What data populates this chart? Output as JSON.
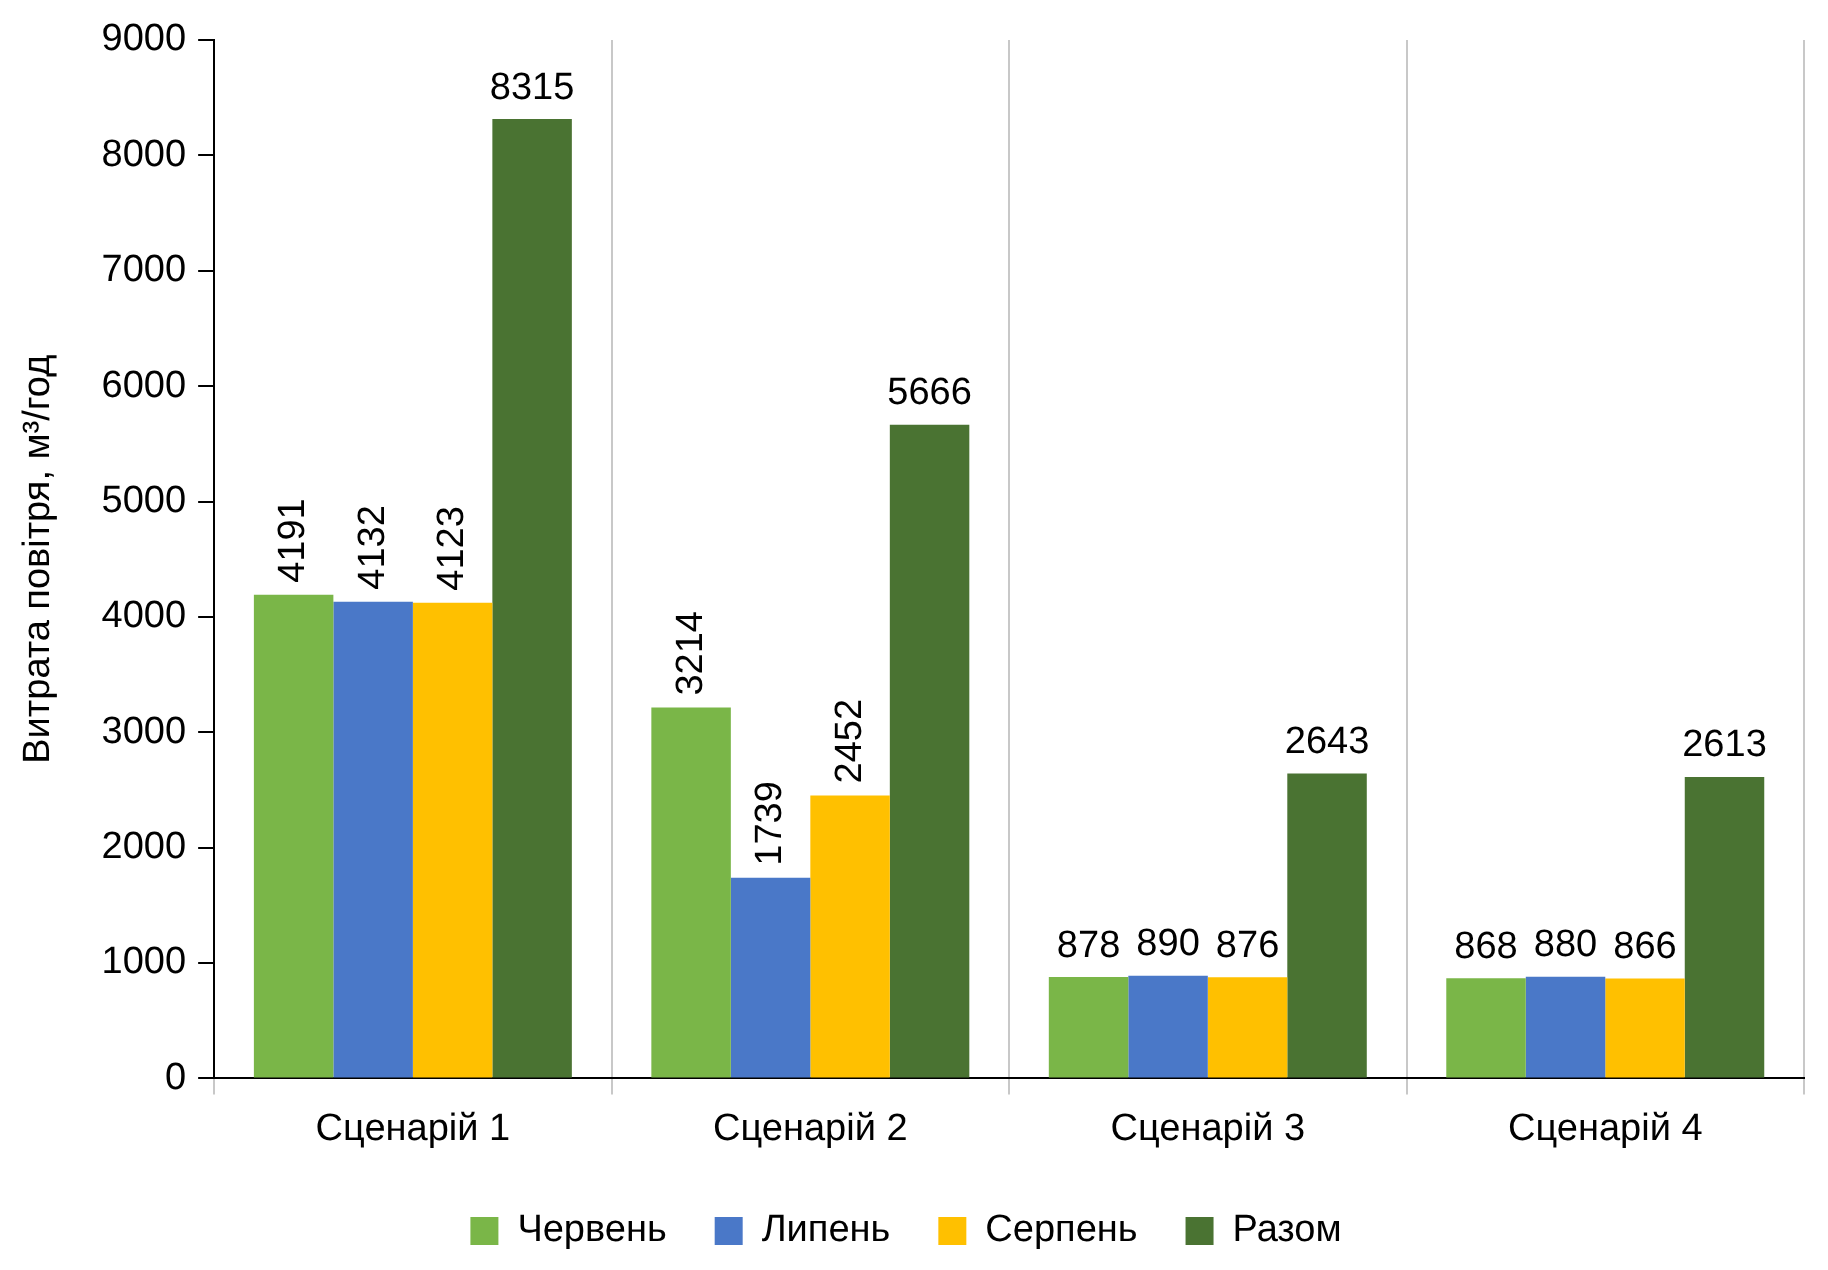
{
  "chart_data": {
    "type": "bar",
    "ylabel": "Витрата повітря, м³/год",
    "categories": [
      "Сценарій 1",
      "Сценарій 2",
      "Сценарій 3",
      "Сценарій 4"
    ],
    "series": [
      {
        "name": "Червень",
        "color": "#7ab648",
        "values": [
          4191,
          3214,
          878,
          868
        ]
      },
      {
        "name": "Липень",
        "color": "#4a78c8",
        "values": [
          4132,
          1739,
          890,
          880
        ]
      },
      {
        "name": "Серпень",
        "color": "#ffc000",
        "values": [
          4123,
          2452,
          876,
          866
        ]
      },
      {
        "name": "Разом",
        "color": "#4a7332",
        "values": [
          8315,
          5666,
          2643,
          2613
        ]
      }
    ],
    "ylim": [
      0,
      9000
    ],
    "yticks": [
      0,
      1000,
      2000,
      3000,
      4000,
      5000,
      6000,
      7000,
      8000,
      9000
    ],
    "grid": "x",
    "legend": "bottom",
    "data_labels": true
  }
}
